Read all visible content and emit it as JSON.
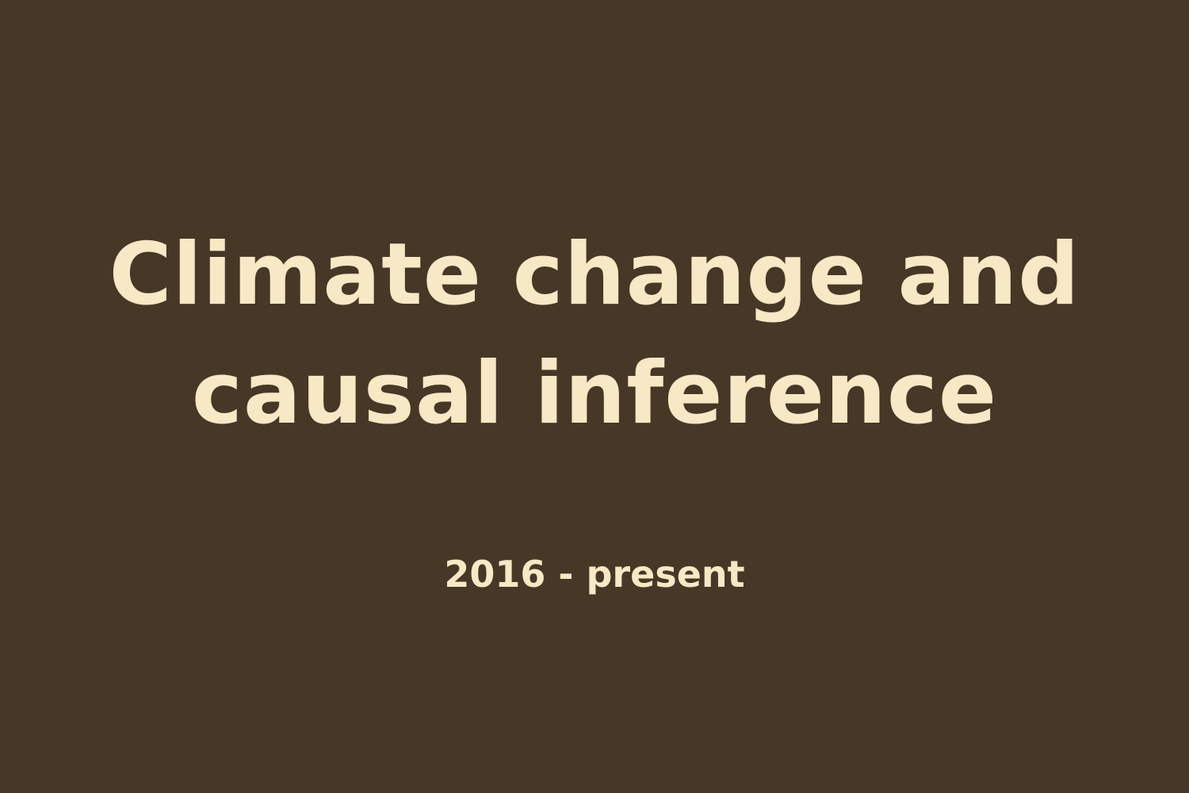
{
  "slide": {
    "title_line_1": "Climate change and",
    "title_line_2": "causal inference",
    "subtitle": "2016 - present"
  },
  "colors": {
    "background": "#463726",
    "text": "#f7e8c6"
  }
}
